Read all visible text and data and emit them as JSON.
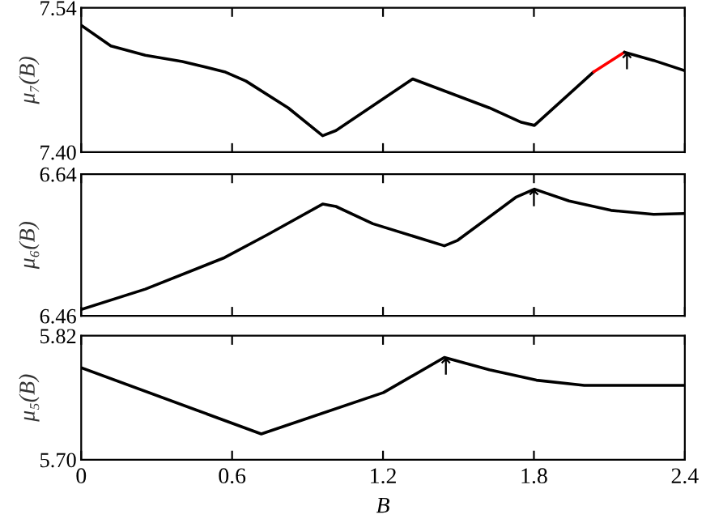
{
  "chart_data": [
    {
      "type": "line",
      "ylabel": "μ₇(B)",
      "xlim": [
        0,
        2.4
      ],
      "xticks": [
        0,
        0.6,
        1.2,
        1.8,
        2.4
      ],
      "ylim": [
        7.4,
        7.54
      ],
      "yticks": [
        {
          "value": 7.4,
          "label": "7.40"
        },
        {
          "value": 7.54,
          "label": "7.54"
        }
      ],
      "tick_labels": "y",
      "grid": false,
      "legend": false,
      "series": [
        {
          "color": "#000000",
          "x": [
            0,
            0.118,
            0.255,
            0.402,
            0.57,
            0.655,
            0.823,
            0.96,
            1.013,
            1.318,
            1.623,
            1.75,
            1.802,
            2.038
          ],
          "values": [
            7.523,
            7.503,
            7.494,
            7.488,
            7.478,
            7.469,
            7.443,
            7.416,
            7.421,
            7.471,
            7.443,
            7.429,
            7.426,
            7.478
          ]
        },
        {
          "color": "#ff0000",
          "x": [
            2.038,
            2.16
          ],
          "values": [
            7.478,
            7.497
          ]
        },
        {
          "color": "#000000",
          "x": [
            2.16,
            2.276,
            2.4
          ],
          "values": [
            7.497,
            7.489,
            7.479
          ]
        }
      ],
      "annotations": [
        {
          "text": "↑",
          "x": 2.17,
          "y": 7.497
        }
      ]
    },
    {
      "type": "line",
      "ylabel": "μ₆(B)",
      "xlim": [
        0,
        2.4
      ],
      "xticks": [
        0,
        0.6,
        1.2,
        1.8,
        2.4
      ],
      "ylim": [
        6.46,
        6.64
      ],
      "yticks": [
        6.46,
        6.64
      ],
      "tick_labels": "y",
      "grid": false,
      "legend": false,
      "series": [
        {
          "color": "#000000",
          "x": [
            0,
            0.255,
            0.57,
            0.74,
            0.96,
            1.013,
            1.16,
            1.444,
            1.497,
            1.73,
            1.802,
            1.94,
            2.107,
            2.276,
            2.4
          ],
          "values": [
            6.468,
            6.494,
            6.534,
            6.563,
            6.602,
            6.599,
            6.577,
            6.549,
            6.556,
            6.611,
            6.621,
            6.606,
            6.594,
            6.589,
            6.59
          ]
        }
      ],
      "annotations": [
        {
          "text": "↑",
          "x": 1.8,
          "y": 6.621
        }
      ]
    },
    {
      "type": "line",
      "ylabel": "μ₅(B)",
      "xlabel": "B",
      "xlim": [
        0,
        2.4
      ],
      "xticks": [
        0,
        0.6,
        1.2,
        1.8,
        2.4
      ],
      "ylim": [
        5.7,
        5.82
      ],
      "yticks": [
        {
          "value": 5.7,
          "label": "5.70"
        },
        5.82
      ],
      "grid": false,
      "legend": false,
      "series": [
        {
          "color": "#000000",
          "x": [
            0,
            0.716,
            1.202,
            1.444,
            1.623,
            1.81,
            2.0,
            2.4
          ],
          "values": [
            5.789,
            5.725,
            5.765,
            5.799,
            5.787,
            5.777,
            5.772,
            5.772
          ]
        }
      ],
      "annotations": [
        {
          "text": "↑",
          "x": 1.45,
          "y": 5.799
        }
      ]
    }
  ]
}
